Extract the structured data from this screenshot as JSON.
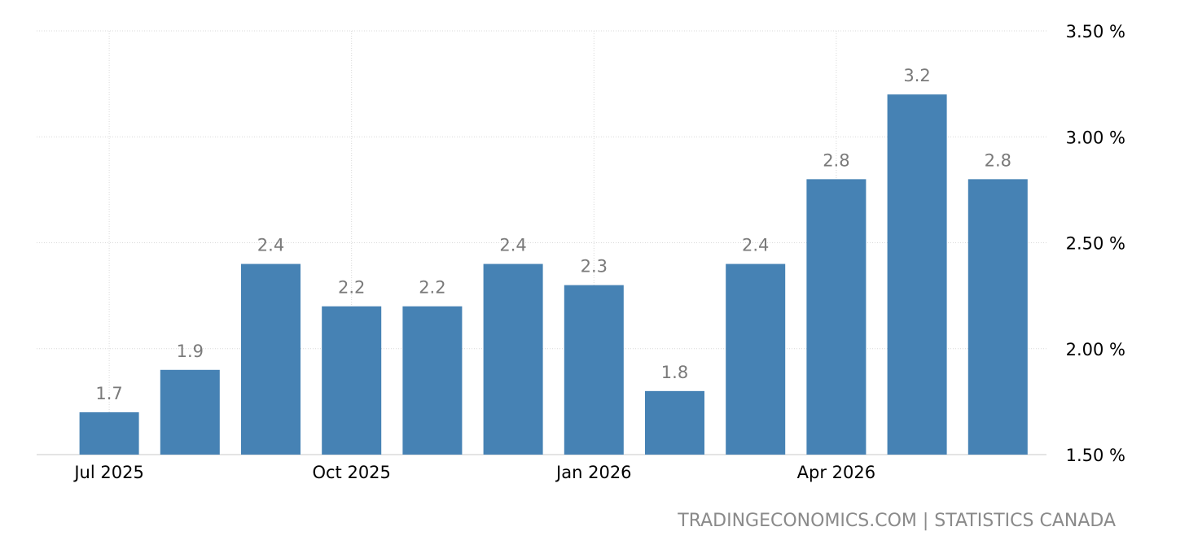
{
  "chart_data": {
    "type": "bar",
    "categories": [
      "Jul 2025",
      "Aug 2025",
      "Sep 2025",
      "Oct 2025",
      "Nov 2025",
      "Dec 2025",
      "Jan 2026",
      "Feb 2026",
      "Mar 2026",
      "Apr 2026",
      "May 2026",
      "Jun 2026"
    ],
    "values": [
      1.7,
      1.9,
      2.4,
      2.2,
      2.2,
      2.4,
      2.3,
      1.8,
      2.4,
      2.8,
      3.2,
      2.8
    ],
    "data_labels": [
      "1.7",
      "1.9",
      "2.4",
      "2.2",
      "2.2",
      "2.4",
      "2.3",
      "1.8",
      "2.4",
      "2.8",
      "3.2",
      "2.8"
    ],
    "x_tick_labels": [
      {
        "category": "Jul 2025",
        "label": "Jul 2025"
      },
      {
        "category": "Oct 2025",
        "label": "Oct 2025"
      },
      {
        "category": "Jan 2026",
        "label": "Jan 2026"
      },
      {
        "category": "Apr 2026",
        "label": "Apr 2026"
      }
    ],
    "y_ticks": [
      1.5,
      2.0,
      2.5,
      3.0,
      3.5
    ],
    "y_tick_labels": [
      "1.50 %",
      "2.00 %",
      "2.50 %",
      "3.00 %",
      "3.50 %"
    ],
    "ylim": [
      1.5,
      3.5
    ],
    "title": "",
    "xlabel": "",
    "ylabel": "",
    "grid": true,
    "bar_color": "#4682b4",
    "axis_position": "right"
  },
  "source": "TRADINGECONOMICS.COM | STATISTICS CANADA"
}
